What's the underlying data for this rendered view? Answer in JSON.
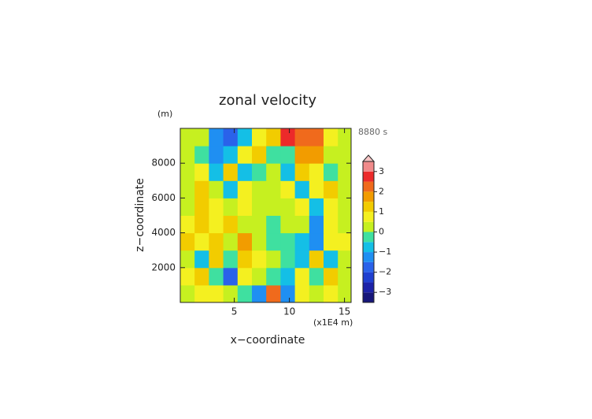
{
  "chart_data": {
    "type": "heatmap",
    "title": "zonal velocity",
    "y_unit": "(m)",
    "time_label": "8880 s",
    "xlabel": "x−coordinate",
    "ylabel": "z−coordinate",
    "x_unit": "(x1E4 m)",
    "xlim": [
      0.1,
      15.6
    ],
    "ylim": [
      0,
      10000
    ],
    "xticks": [
      5,
      10,
      15
    ],
    "yticks": [
      2000,
      4000,
      6000,
      8000
    ],
    "x": [
      0.75,
      2.05,
      3.35,
      4.65,
      5.95,
      7.25,
      8.55,
      9.85,
      11.15,
      12.45,
      13.75,
      15.05
    ],
    "y": [
      500,
      1500,
      2500,
      3500,
      4500,
      5500,
      6500,
      7500,
      8500,
      9500
    ],
    "z": [
      [
        0.3,
        0.5,
        0.8,
        0.3,
        -0.5,
        -1.5,
        2.0,
        -1.5,
        0.5,
        0.3,
        0.8,
        0.3
      ],
      [
        0.8,
        1.2,
        -0.5,
        -1.8,
        0.5,
        0.2,
        -0.3,
        -1.0,
        0.5,
        -0.5,
        1.2,
        0.3
      ],
      [
        0.3,
        -0.8,
        1.0,
        -0.5,
        1.2,
        0.5,
        0.0,
        -0.5,
        -1.0,
        1.0,
        -0.8,
        0.3
      ],
      [
        1.2,
        0.5,
        1.0,
        0.3,
        1.5,
        0.3,
        -0.2,
        -0.3,
        -1.0,
        -1.2,
        0.8,
        0.8
      ],
      [
        0.8,
        1.3,
        0.5,
        1.0,
        0.3,
        0.2,
        -0.2,
        0.2,
        0.3,
        -1.5,
        0.5,
        0.3
      ],
      [
        0.3,
        1.2,
        0.8,
        0.3,
        0.5,
        0.2,
        0.2,
        0.3,
        0.5,
        -1.0,
        0.8,
        0.3
      ],
      [
        0.3,
        1.0,
        0.2,
        -0.8,
        0.8,
        0.2,
        0.2,
        0.8,
        -0.8,
        0.5,
        1.0,
        0.3
      ],
      [
        0.3,
        0.8,
        -1.0,
        1.0,
        -0.8,
        -0.2,
        0.2,
        -0.8,
        1.2,
        0.5,
        -0.3,
        0.3
      ],
      [
        0.3,
        -0.3,
        -1.5,
        -0.8,
        0.5,
        1.0,
        -0.3,
        -0.5,
        1.5,
        1.8,
        0.3,
        0.3
      ],
      [
        0.3,
        0.2,
        -1.5,
        -1.8,
        -1.0,
        0.5,
        1.0,
        2.5,
        2.2,
        2.0,
        0.5,
        0.3
      ]
    ],
    "colorbar": {
      "levels": [
        -3.5,
        -3,
        -2.5,
        -2,
        -1.5,
        -1,
        -0.5,
        0,
        0.5,
        1,
        1.5,
        2,
        2.5,
        3,
        3.5
      ],
      "colors": [
        "#16167a",
        "#1c22a8",
        "#1f3fd0",
        "#2a62ea",
        "#1f8ff2",
        "#14bfe6",
        "#3fe0a0",
        "#c6f020",
        "#f4f020",
        "#f2cc00",
        "#f29c00",
        "#f06a1c",
        "#ec2a2a",
        "#f08a8a"
      ],
      "extend_color": "#f6c4c4",
      "ticks": [
        {
          "value": -3,
          "label": "−3"
        },
        {
          "value": -2,
          "label": "−2"
        },
        {
          "value": -1,
          "label": "−1"
        },
        0,
        1,
        2,
        3
      ]
    }
  }
}
